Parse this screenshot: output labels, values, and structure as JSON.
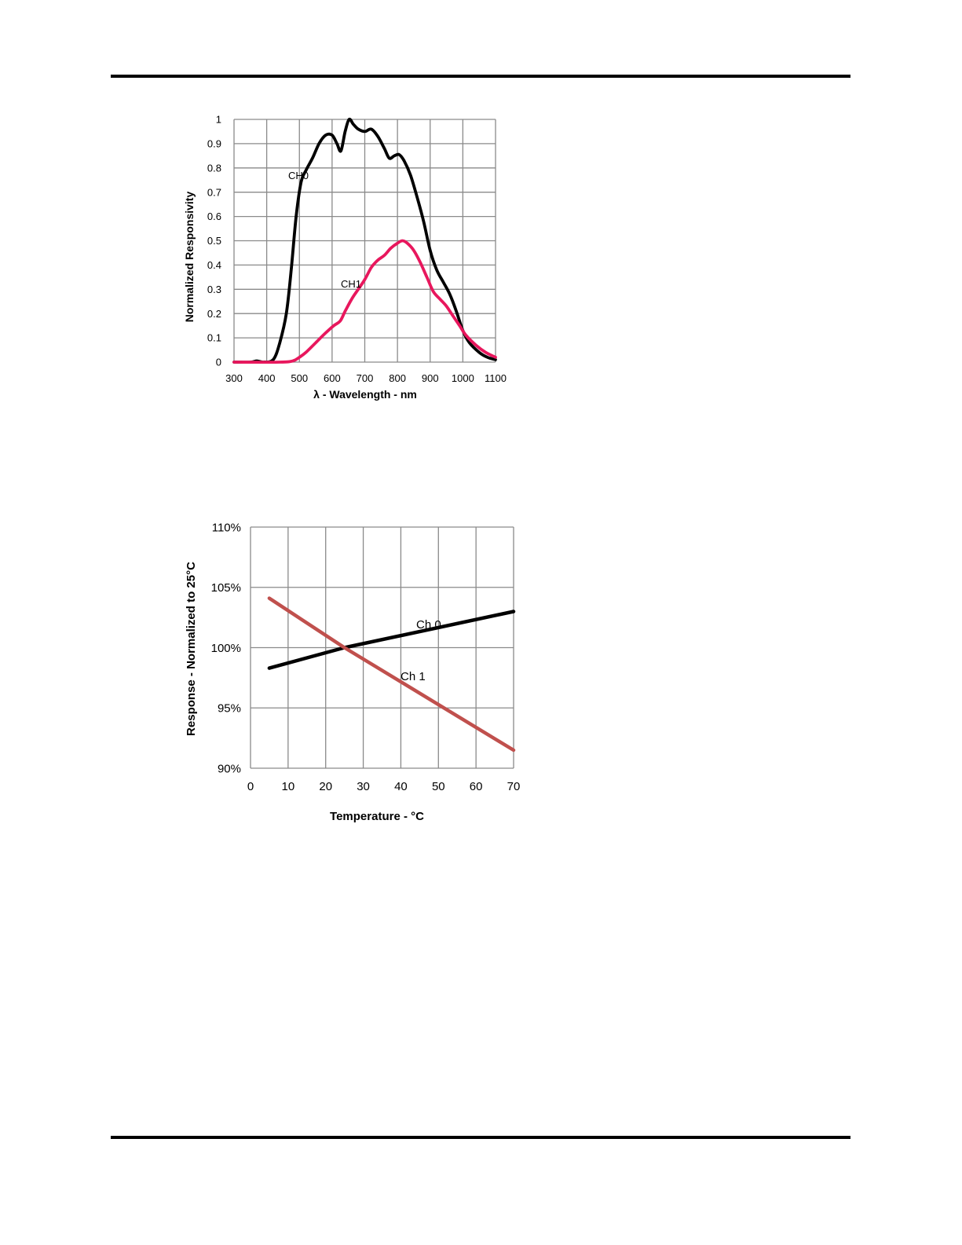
{
  "chart_data": [
    {
      "type": "line",
      "title": "",
      "xlabel": "λ - Wavelength - nm",
      "ylabel": "Normalized Responsivity",
      "xlim": [
        300,
        1100
      ],
      "ylim": [
        0,
        1
      ],
      "x_ticks": [
        "300",
        "400",
        "500",
        "600",
        "700",
        "800",
        "900",
        "1000",
        "1100"
      ],
      "y_ticks": [
        "0",
        "0.1",
        "0.2",
        "0.3",
        "0.4",
        "0.5",
        "0.6",
        "0.7",
        "0.8",
        "0.9",
        "1"
      ],
      "grid": true,
      "legend": "none",
      "series": [
        {
          "name": "CH0",
          "color": "#000000",
          "points": [
            [
              300,
              0
            ],
            [
              350,
              0
            ],
            [
              370,
              0.005
            ],
            [
              390,
              0
            ],
            [
              420,
              0.01
            ],
            [
              440,
              0.08
            ],
            [
              460,
              0.2
            ],
            [
              475,
              0.38
            ],
            [
              490,
              0.6
            ],
            [
              505,
              0.74
            ],
            [
              520,
              0.79
            ],
            [
              540,
              0.84
            ],
            [
              560,
              0.9
            ],
            [
              580,
              0.935
            ],
            [
              600,
              0.935
            ],
            [
              615,
              0.9
            ],
            [
              627,
              0.87
            ],
            [
              640,
              0.95
            ],
            [
              652,
              1.0
            ],
            [
              665,
              0.98
            ],
            [
              680,
              0.96
            ],
            [
              700,
              0.95
            ],
            [
              720,
              0.96
            ],
            [
              740,
              0.93
            ],
            [
              760,
              0.88
            ],
            [
              775,
              0.84
            ],
            [
              790,
              0.85
            ],
            [
              805,
              0.855
            ],
            [
              820,
              0.83
            ],
            [
              840,
              0.77
            ],
            [
              860,
              0.68
            ],
            [
              880,
              0.58
            ],
            [
              900,
              0.46
            ],
            [
              920,
              0.38
            ],
            [
              940,
              0.33
            ],
            [
              960,
              0.28
            ],
            [
              980,
              0.21
            ],
            [
              1000,
              0.13
            ],
            [
              1020,
              0.08
            ],
            [
              1050,
              0.04
            ],
            [
              1075,
              0.02
            ],
            [
              1100,
              0.01
            ]
          ]
        },
        {
          "name": "CH1",
          "color": "#e8175d",
          "points": [
            [
              300,
              0
            ],
            [
              440,
              0
            ],
            [
              480,
              0.005
            ],
            [
              500,
              0.02
            ],
            [
              520,
              0.04
            ],
            [
              550,
              0.08
            ],
            [
              580,
              0.12
            ],
            [
              605,
              0.15
            ],
            [
              625,
              0.17
            ],
            [
              640,
              0.21
            ],
            [
              660,
              0.26
            ],
            [
              680,
              0.3
            ],
            [
              700,
              0.34
            ],
            [
              720,
              0.39
            ],
            [
              740,
              0.42
            ],
            [
              760,
              0.44
            ],
            [
              780,
              0.47
            ],
            [
              800,
              0.49
            ],
            [
              815,
              0.5
            ],
            [
              830,
              0.49
            ],
            [
              850,
              0.46
            ],
            [
              870,
              0.41
            ],
            [
              890,
              0.35
            ],
            [
              910,
              0.29
            ],
            [
              930,
              0.26
            ],
            [
              950,
              0.23
            ],
            [
              970,
              0.19
            ],
            [
              990,
              0.15
            ],
            [
              1010,
              0.11
            ],
            [
              1040,
              0.07
            ],
            [
              1070,
              0.04
            ],
            [
              1100,
              0.02
            ]
          ]
        }
      ],
      "annotations": [
        {
          "text": "CH0",
          "x": 480,
          "y": 0.77
        },
        {
          "text": "CH1",
          "x": 612,
          "y": 0.325
        }
      ]
    },
    {
      "type": "line",
      "title": "",
      "xlabel": "Temperature - °C",
      "ylabel": "Response - Normalized to 25°C",
      "xlim": [
        0,
        70
      ],
      "ylim": [
        90,
        110
      ],
      "x_ticks": [
        "0",
        "10",
        "20",
        "30",
        "40",
        "50",
        "60",
        "70"
      ],
      "y_ticks": [
        "90%",
        "95%",
        "100%",
        "105%",
        "110%"
      ],
      "grid": true,
      "legend": "none",
      "series": [
        {
          "name": "Ch 0",
          "color": "#000000",
          "points": [
            [
              5,
              98.3
            ],
            [
              25,
              100
            ],
            [
              70,
              103
            ]
          ]
        },
        {
          "name": "Ch 1",
          "color": "#c0504d",
          "points": [
            [
              5,
              104.1
            ],
            [
              25,
              100
            ],
            [
              70,
              91.5
            ]
          ]
        }
      ],
      "annotations": [
        {
          "text": "Ch 0",
          "x": 47,
          "y": 102.3
        },
        {
          "text": "Ch 1",
          "x": 43,
          "y": 97.8
        }
      ]
    }
  ]
}
